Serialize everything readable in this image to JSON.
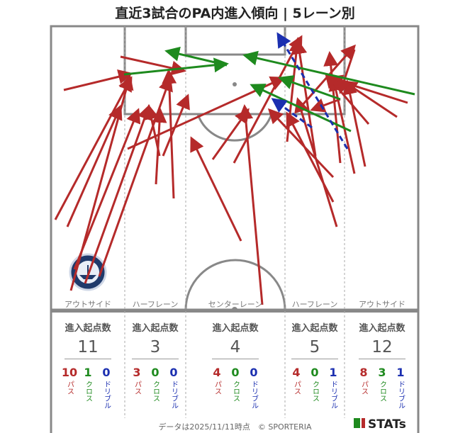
{
  "title": "直近3試合のPA内進入傾向 | 5レーン別",
  "chart_data": {
    "type": "arrow-map",
    "title": "直近3試合のPA内進入傾向 | 5レーン別",
    "lanes": [
      {
        "name": "アウトサイド",
        "stat_label": "進入起点数",
        "total": "11",
        "pass": "10",
        "cross": "1",
        "dribble": "0"
      },
      {
        "name": "ハーフレーン",
        "stat_label": "進入起点数",
        "total": "3",
        "pass": "3",
        "cross": "0",
        "dribble": "0"
      },
      {
        "name": "センターレーン",
        "stat_label": "進入起点数",
        "total": "4",
        "pass": "4",
        "cross": "0",
        "dribble": "0"
      },
      {
        "name": "ハーフレーン",
        "stat_label": "進入起点数",
        "total": "5",
        "pass": "4",
        "cross": "0",
        "dribble": "1"
      },
      {
        "name": "アウトサイド",
        "stat_label": "進入起点数",
        "total": "12",
        "pass": "8",
        "cross": "3",
        "dribble": "1"
      }
    ],
    "type_labels": {
      "pass": "パス",
      "cross": "クロス",
      "dribble": "ドリブル"
    },
    "colors": {
      "pass": "#b52a2a",
      "cross": "#1e8a1e",
      "dribble": "#1b2fb0"
    }
  },
  "footer": "データは2025/11/11時点　© SPORTERIA",
  "brand": "STATs",
  "logo_text": "KAGOSHIMA UNITED FC"
}
